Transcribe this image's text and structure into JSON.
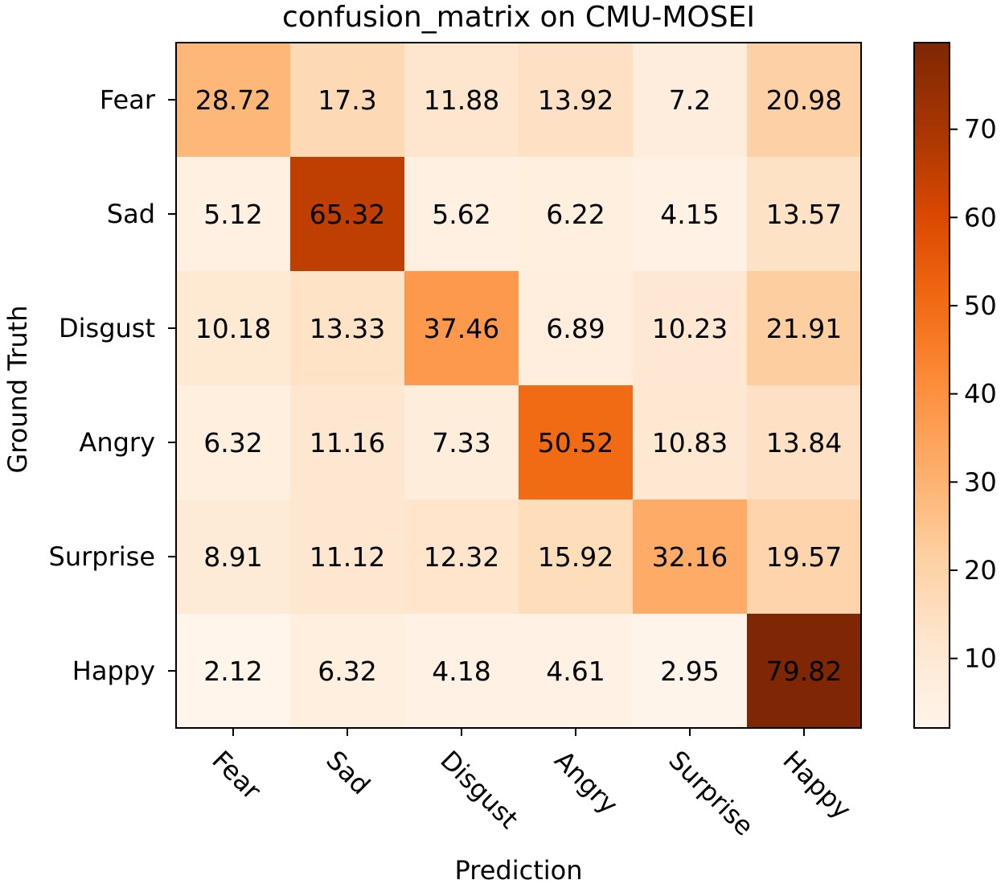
{
  "chart_data": {
    "type": "heatmap",
    "title": "confusion_matrix on CMU-MOSEI",
    "xlabel": "Prediction",
    "ylabel": "Ground Truth",
    "x_categories": [
      "Fear",
      "Sad",
      "Disgust",
      "Angry",
      "Surprise",
      "Happy"
    ],
    "y_categories": [
      "Fear",
      "Sad",
      "Disgust",
      "Angry",
      "Surprise",
      "Happy"
    ],
    "values": [
      [
        28.72,
        17.3,
        11.88,
        13.92,
        7.2,
        20.98
      ],
      [
        5.12,
        65.32,
        5.62,
        6.22,
        4.15,
        13.57
      ],
      [
        10.18,
        13.33,
        37.46,
        6.89,
        10.23,
        21.91
      ],
      [
        6.32,
        11.16,
        7.33,
        50.52,
        10.83,
        13.84
      ],
      [
        8.91,
        11.12,
        12.32,
        15.92,
        32.16,
        19.57
      ],
      [
        2.12,
        6.32,
        4.18,
        4.61,
        2.95,
        79.82
      ]
    ],
    "value_labels": [
      [
        "28.72",
        "17.3",
        "11.88",
        "13.92",
        "7.2",
        "20.98"
      ],
      [
        "5.12",
        "65.32",
        "5.62",
        "6.22",
        "4.15",
        "13.57"
      ],
      [
        "10.18",
        "13.33",
        "37.46",
        "6.89",
        "10.23",
        "21.91"
      ],
      [
        "6.32",
        "11.16",
        "7.33",
        "50.52",
        "10.83",
        "13.84"
      ],
      [
        "8.91",
        "11.12",
        "12.32",
        "15.92",
        "32.16",
        "19.57"
      ],
      [
        "2.12",
        "6.32",
        "4.18",
        "4.61",
        "2.95",
        "79.82"
      ]
    ],
    "colormap": "Oranges",
    "colorbar": {
      "range": [
        2.12,
        79.82
      ],
      "ticks": [
        10,
        20,
        30,
        40,
        50,
        60,
        70
      ],
      "tick_labels": [
        "10",
        "20",
        "30",
        "40",
        "50",
        "60",
        "70"
      ],
      "position": "right"
    }
  },
  "colors": {
    "cmap_stops": [
      "#fff5eb",
      "#fee6ce",
      "#fdd0a2",
      "#fdae6b",
      "#fd8d3c",
      "#f16913",
      "#d94801",
      "#a63603",
      "#7f2704"
    ],
    "axis": "#000000",
    "text": "#000000"
  }
}
